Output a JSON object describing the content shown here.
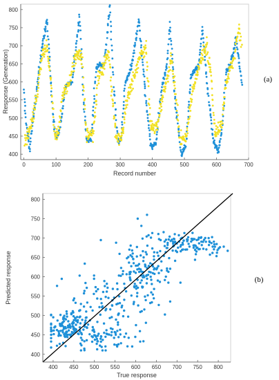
{
  "chart_data": [
    {
      "type": "scatter",
      "panel_label": "(a)",
      "xlabel": "Record number",
      "ylabel": "Response (Generation)",
      "xlim": [
        -10,
        700
      ],
      "ylim": [
        385,
        815
      ],
      "xticks": [
        0,
        100,
        200,
        300,
        400,
        500,
        600,
        700
      ],
      "yticks": [
        400,
        450,
        500,
        550,
        600,
        650,
        700,
        750,
        800
      ],
      "grid": false,
      "colors": {
        "series_1": "#1e90d8",
        "series_2": "#f2e125"
      },
      "series": [
        {
          "cycles": [
            [
              0,
              575,
              8,
              480,
              18,
              415,
              55,
              690,
              72,
              770,
              90,
              510,
              100,
              445
            ],
            [
              100,
              445,
              110,
              460,
              130,
              590,
              150,
              600,
              173,
              785,
              185,
              560,
              195,
              440
            ],
            [
              195,
              440,
              210,
              440,
              225,
              640,
              250,
              650,
              268,
              808,
              280,
              575,
              293,
              430
            ],
            [
              293,
              430,
              303,
              445,
              315,
              595,
              335,
              640,
              358,
              770,
              375,
              600,
              395,
              420
            ],
            [
              395,
              420,
              412,
              430,
              430,
              590,
              445,
              640,
              455,
              760,
              470,
              560,
              490,
              395
            ],
            [
              490,
              395,
              505,
              430,
              520,
              615,
              545,
              645,
              556,
              750,
              570,
              600,
              590,
              440
            ],
            [
              590,
              440,
              607,
              405,
              618,
              480,
              630,
              630,
              645,
              650,
              660,
              720,
              680,
              590
            ]
          ]
        },
        {
          "cycles": [
            [
              2,
              430,
              20,
              470,
              40,
              560,
              55,
              665,
              70,
              705,
              85,
              595,
              95,
              455
            ],
            [
              95,
              455,
              108,
              455,
              120,
              560,
              140,
              595,
              160,
              670,
              180,
              680,
              195,
              450
            ],
            [
              195,
              450,
              215,
              455,
              230,
              600,
              250,
              650,
              265,
              680,
              280,
              505,
              290,
              440
            ],
            [
              290,
              440,
              305,
              450,
              320,
              545,
              340,
              605,
              360,
              665,
              380,
              700,
              395,
              470
            ],
            [
              395,
              470,
              415,
              475,
              428,
              540,
              445,
              610,
              458,
              655,
              470,
              600,
              485,
              440
            ],
            [
              485,
              440,
              505,
              440,
              520,
              545,
              545,
              645,
              570,
              700,
              585,
              600,
              595,
              460
            ],
            [
              595,
              460,
              615,
              480,
              630,
              600,
              650,
              655,
              670,
              745,
              678,
              700
            ]
          ]
        }
      ]
    },
    {
      "type": "scatter",
      "panel_label": "(b)",
      "xlabel": "True response",
      "ylabel": "Predicted response",
      "xlim": [
        375,
        830
      ],
      "ylim": [
        380,
        815
      ],
      "xticks": [
        400,
        450,
        500,
        550,
        600,
        650,
        700,
        750,
        800
      ],
      "yticks": [
        400,
        450,
        500,
        550,
        600,
        650,
        700,
        750,
        800
      ],
      "grid": false,
      "colors": {
        "points": "#1e90d8",
        "reference_line": "#000000"
      },
      "reference_line": [
        [
          375,
          375
        ],
        [
          835,
          835
        ]
      ],
      "clusters": [
        {
          "cx": 430,
          "cy": 470,
          "sx": 25,
          "sy": 20,
          "n": 110
        },
        {
          "cx": 480,
          "cy": 455,
          "sx": 35,
          "sy": 25,
          "n": 55
        },
        {
          "cx": 540,
          "cy": 440,
          "sx": 40,
          "sy": 20,
          "n": 40
        },
        {
          "cx": 500,
          "cy": 550,
          "sx": 45,
          "sy": 50,
          "n": 50
        },
        {
          "cx": 600,
          "cy": 600,
          "sx": 25,
          "sy": 45,
          "n": 70
        },
        {
          "cx": 640,
          "cy": 630,
          "sx": 25,
          "sy": 55,
          "n": 80
        },
        {
          "cx": 700,
          "cy": 690,
          "sx": 30,
          "sy": 15,
          "n": 60
        },
        {
          "cx": 770,
          "cy": 680,
          "sx": 25,
          "sy": 12,
          "n": 45
        },
        {
          "cx": 560,
          "cy": 520,
          "sx": 40,
          "sy": 40,
          "n": 25
        }
      ]
    }
  ]
}
